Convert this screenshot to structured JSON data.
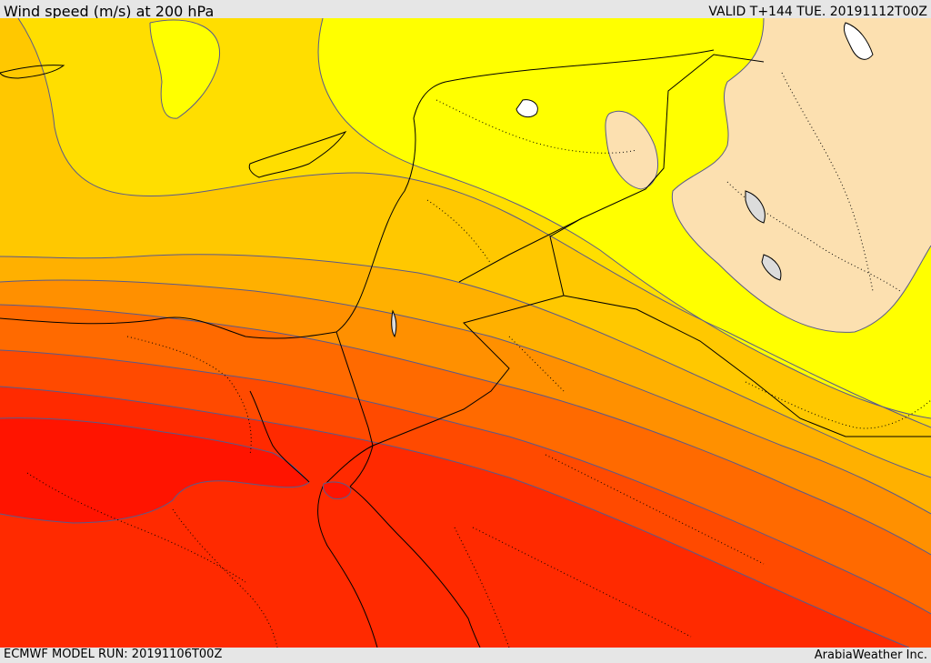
{
  "header": {
    "title": "Wind speed (m/s) at 200 hPa",
    "valid": "VALID T+144 TUE. 20191112T00Z"
  },
  "footer": {
    "model_run": "ECMWF MODEL RUN: 20191106T00Z",
    "credit": "ArabiaWeather Inc."
  },
  "map": {
    "variable": "wind speed",
    "level": "200 hPa",
    "palette": {
      "weakest": "#fce0b0",
      "light_yellow": "#ffff00",
      "yellow": "#ffde00",
      "gold": "#ffc800",
      "orange_light": "#ffb000",
      "orange": "#ff9000",
      "orange_dark": "#ff6a00",
      "red_orange": "#ff4a00",
      "red": "#ff2a00",
      "core_red": "#ff1400",
      "contour": "#5a5a8a",
      "border": "#000000",
      "water_body": "#dcdcdc"
    }
  }
}
